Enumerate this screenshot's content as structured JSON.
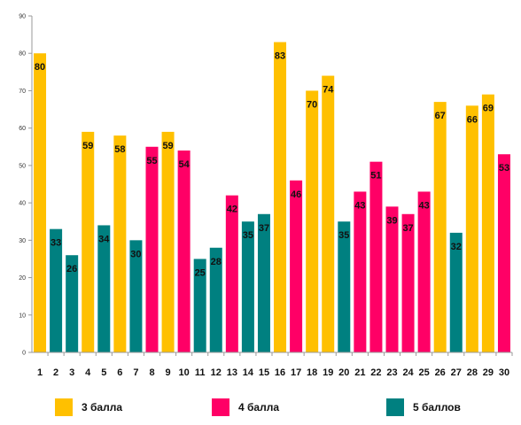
{
  "chart_data": {
    "type": "bar",
    "title": "",
    "xlabel": "",
    "ylabel": "",
    "ylim": [
      0,
      90
    ],
    "y_ticks": [
      0,
      10,
      20,
      30,
      40,
      50,
      60,
      70,
      80,
      90
    ],
    "grid": false,
    "legend_position": "bottom",
    "categories": [
      "1",
      "2",
      "3",
      "4",
      "5",
      "6",
      "7",
      "8",
      "9",
      "10",
      "11",
      "12",
      "13",
      "14",
      "15",
      "16",
      "17",
      "18",
      "19",
      "20",
      "21",
      "22",
      "23",
      "24",
      "25",
      "26",
      "27",
      "28",
      "29",
      "30"
    ],
    "values": [
      80,
      33,
      26,
      59,
      34,
      58,
      30,
      55,
      59,
      54,
      25,
      28,
      42,
      35,
      37,
      83,
      46,
      70,
      74,
      35,
      43,
      51,
      39,
      37,
      43,
      67,
      32,
      66,
      69,
      53
    ],
    "groups": [
      "g3",
      "g5",
      "g5",
      "g3",
      "g5",
      "g3",
      "g5",
      "g4",
      "g3",
      "g4",
      "g5",
      "g5",
      "g4",
      "g5",
      "g5",
      "g3",
      "g4",
      "g3",
      "g3",
      "g5",
      "g4",
      "g4",
      "g4",
      "g4",
      "g4",
      "g3",
      "g5",
      "g3",
      "g3",
      "g4"
    ],
    "legend": [
      {
        "key": "g3",
        "label": "3 балла",
        "color": "#FFC000"
      },
      {
        "key": "g4",
        "label": "4 балла",
        "color": "#FF0066"
      },
      {
        "key": "g5",
        "label": "5 баллов",
        "color": "#008080"
      }
    ]
  }
}
